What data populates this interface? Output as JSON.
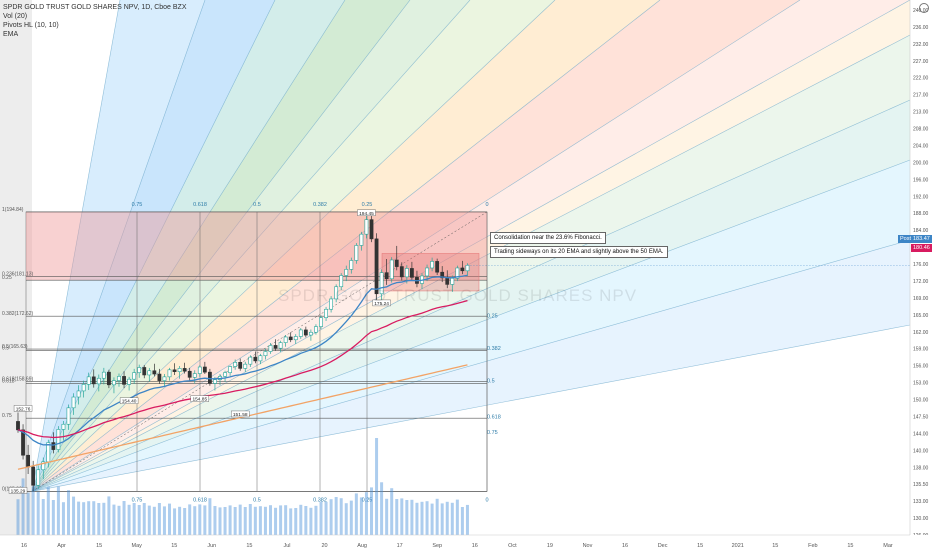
{
  "legend": {
    "symbol_line": "SPDR GOLD TRUST GOLD SHARES NPV, 1D, Cboe BZX",
    "vol": "Vol (20)",
    "pivots": "Pivots HL (10, 10)",
    "ema": "EMA"
  },
  "watermark": "SPDR GOLD TRUST GOLD SHARES NPV",
  "notes": {
    "line1": "Consolidation near the 23.6% Fibonacci.",
    "line2": "Trading sideways on its 20 EMA and slightly above the 50 EMA."
  },
  "axis_tags": {
    "series": "Post",
    "last_price": "183.47",
    "ema_value": "180.46"
  },
  "colors": {
    "up": "#26a69a",
    "down": "#333333",
    "ema20": "#3d85c6",
    "ema50": "#d81b60",
    "ema200": "#f2a366",
    "volume": "#4a90d9"
  },
  "chart_data": {
    "type": "candlestick",
    "x_tick_labels": [
      "16",
      "Apr",
      "15",
      "May",
      "15",
      "Jun",
      "15",
      "Jul",
      "20",
      "Aug",
      "17",
      "Sep",
      "16",
      "Oct",
      "19",
      "Nov",
      "16",
      "Dec",
      "15",
      "2021",
      "15",
      "Feb",
      "15",
      "Mar"
    ],
    "y_tick_labels": [
      "240.00",
      "236.00",
      "232.00",
      "227.00",
      "222.00",
      "217.00",
      "213.00",
      "208.00",
      "204.00",
      "200.00",
      "196.00",
      "192.00",
      "188.00",
      "184.00",
      "180.00",
      "176.00",
      "172.00",
      "169.00",
      "165.00",
      "162.00",
      "159.00",
      "156.00",
      "153.00",
      "150.00",
      "147.50",
      "144.00",
      "140.00",
      "138.00",
      "135.50",
      "133.00",
      "130.00",
      "126.00"
    ],
    "ylim": [
      126,
      240
    ],
    "pivot_labels": [
      "194.45",
      "154.40",
      "154.85",
      "151.58",
      "152.76",
      "135.29",
      "175.24"
    ],
    "fib_retracement": [
      {
        "label": "1(194.84)",
        "value": 194.84
      },
      {
        "label": "0.236(181.13)",
        "value": 181.13
      },
      {
        "label": "0.25",
        "value": 180.3
      },
      {
        "label": "0.382(172.62)",
        "value": 172.62
      },
      {
        "label": "0.5(165.63)",
        "value": 165.63
      },
      {
        "label": "0.5",
        "value": 165.3
      },
      {
        "label": "0.618(158.69)",
        "value": 158.69
      },
      {
        "label": "0.618",
        "value": 158.3
      },
      {
        "label": "0.75",
        "value": 150.9
      },
      {
        "label": "0(135.29)",
        "value": 135.29
      }
    ],
    "fib_time_labels": [
      "0.75",
      "0.618",
      "0.5",
      "0.382",
      "0.25",
      "0"
    ],
    "fan_ratio_labels": [
      "0.25",
      "0.382",
      "0.5",
      "0.618",
      "0.75"
    ],
    "series": [
      {
        "name": "Vol (20)"
      },
      {
        "name": "EMA"
      }
    ],
    "candles": [
      [
        150.2,
        152.1,
        147.8,
        148.4
      ],
      [
        148.4,
        149.6,
        142.1,
        143.0
      ],
      [
        143.0,
        145.2,
        139.0,
        140.5
      ],
      [
        140.5,
        141.8,
        135.3,
        136.6
      ],
      [
        136.6,
        140.8,
        135.8,
        139.9
      ],
      [
        139.9,
        142.5,
        137.9,
        141.6
      ],
      [
        141.6,
        146.3,
        140.4,
        145.7
      ],
      [
        145.7,
        147.9,
        143.4,
        144.2
      ],
      [
        144.2,
        149.2,
        143.6,
        148.5
      ],
      [
        148.5,
        150.3,
        146.1,
        149.6
      ],
      [
        149.6,
        153.8,
        148.4,
        153.1
      ],
      [
        153.1,
        156.2,
        151.6,
        155.4
      ],
      [
        155.4,
        157.9,
        153.8,
        156.7
      ],
      [
        156.7,
        158.9,
        155.3,
        158.1
      ],
      [
        158.1,
        160.6,
        156.9,
        159.7
      ],
      [
        159.7,
        161.3,
        157.4,
        158.2
      ],
      [
        158.2,
        160.2,
        156.6,
        159.4
      ],
      [
        159.4,
        161.6,
        158.1,
        160.7
      ],
      [
        160.7,
        161.2,
        157.3,
        158.0
      ],
      [
        158.0,
        159.6,
        156.2,
        158.9
      ],
      [
        158.9,
        160.4,
        157.6,
        159.8
      ],
      [
        159.8,
        160.9,
        157.3,
        158.1
      ],
      [
        158.1,
        159.7,
        156.8,
        159.2
      ],
      [
        159.2,
        161.4,
        158.2,
        160.6
      ],
      [
        160.6,
        162.3,
        159.5,
        161.7
      ],
      [
        161.7,
        162.2,
        159.4,
        160.1
      ],
      [
        160.1,
        161.6,
        158.7,
        161.0
      ],
      [
        161.0,
        162.5,
        159.8,
        160.3
      ],
      [
        160.3,
        161.4,
        158.2,
        158.9
      ],
      [
        158.9,
        160.3,
        157.6,
        159.7
      ],
      [
        159.7,
        161.6,
        158.9,
        161.2
      ],
      [
        161.2,
        162.6,
        160.1,
        160.8
      ],
      [
        160.8,
        162.0,
        159.3,
        161.5
      ],
      [
        161.5,
        162.7,
        160.4,
        160.9
      ],
      [
        160.9,
        161.6,
        158.9,
        159.6
      ],
      [
        159.6,
        161.1,
        158.3,
        160.4
      ],
      [
        160.4,
        162.2,
        159.7,
        161.8
      ],
      [
        161.8,
        162.9,
        160.3,
        160.7
      ],
      [
        160.7,
        161.4,
        157.8,
        158.3
      ],
      [
        158.3,
        159.7,
        156.8,
        159.1
      ],
      [
        159.1,
        160.3,
        157.9,
        159.8
      ],
      [
        159.8,
        161.0,
        158.6,
        160.6
      ],
      [
        160.6,
        162.1,
        159.9,
        161.9
      ],
      [
        161.9,
        163.4,
        161.2,
        162.8
      ],
      [
        162.8,
        163.6,
        161.0,
        161.5
      ],
      [
        161.5,
        162.9,
        160.7,
        162.4
      ],
      [
        162.4,
        164.3,
        161.8,
        163.9
      ],
      [
        163.9,
        165.1,
        162.6,
        163.1
      ],
      [
        163.1,
        164.6,
        162.4,
        164.2
      ],
      [
        164.2,
        165.7,
        163.4,
        165.1
      ],
      [
        165.1,
        166.9,
        164.6,
        166.4
      ],
      [
        166.4,
        167.7,
        165.3,
        165.8
      ],
      [
        165.8,
        167.4,
        165.0,
        167.0
      ],
      [
        167.0,
        168.6,
        166.1,
        168.2
      ],
      [
        168.2,
        169.2,
        167.1,
        167.6
      ],
      [
        167.6,
        168.8,
        166.7,
        168.3
      ],
      [
        168.3,
        170.1,
        167.8,
        169.7
      ],
      [
        169.7,
        170.4,
        168.1,
        168.6
      ],
      [
        168.6,
        169.8,
        167.4,
        169.2
      ],
      [
        169.2,
        170.9,
        168.7,
        170.4
      ],
      [
        170.4,
        172.8,
        169.9,
        172.3
      ],
      [
        172.3,
        174.6,
        171.6,
        174.1
      ],
      [
        174.1,
        176.9,
        173.4,
        176.3
      ],
      [
        176.3,
        179.4,
        175.6,
        178.9
      ],
      [
        178.9,
        181.8,
        178.2,
        181.3
      ],
      [
        181.3,
        183.4,
        180.1,
        182.6
      ],
      [
        182.6,
        185.1,
        181.7,
        184.5
      ],
      [
        184.5,
        188.2,
        183.8,
        187.7
      ],
      [
        187.7,
        190.6,
        186.6,
        190.1
      ],
      [
        190.1,
        194.45,
        189.2,
        193.2
      ],
      [
        193.2,
        194.0,
        188.4,
        189.1
      ],
      [
        189.1,
        190.3,
        175.2,
        177.4
      ],
      [
        177.4,
        182.6,
        175.24,
        181.9
      ],
      [
        181.9,
        184.8,
        179.3,
        180.6
      ],
      [
        180.6,
        185.2,
        179.8,
        184.6
      ],
      [
        184.6,
        187.6,
        182.4,
        183.2
      ],
      [
        183.2,
        184.1,
        180.2,
        181.0
      ],
      [
        181.0,
        183.5,
        179.6,
        182.8
      ],
      [
        182.8,
        184.2,
        180.4,
        180.9
      ],
      [
        180.9,
        182.3,
        178.8,
        179.6
      ],
      [
        179.6,
        181.8,
        178.4,
        181.2
      ],
      [
        181.2,
        183.6,
        180.1,
        182.9
      ],
      [
        182.9,
        185.1,
        182.2,
        184.3
      ],
      [
        184.3,
        184.9,
        181.4,
        182.0
      ],
      [
        182.0,
        183.3,
        179.9,
        180.8
      ],
      [
        180.8,
        182.4,
        178.6,
        179.4
      ],
      [
        179.4,
        181.3,
        177.8,
        180.7
      ],
      [
        180.7,
        183.4,
        180.1,
        182.9
      ],
      [
        182.9,
        184.4,
        181.6,
        182.3
      ],
      [
        182.3,
        183.9,
        181.2,
        183.47
      ]
    ]
  }
}
